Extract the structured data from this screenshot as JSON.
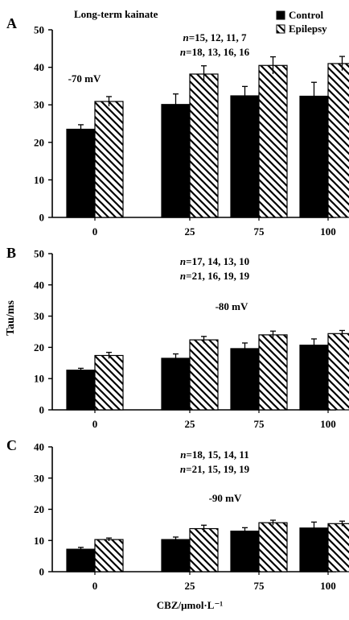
{
  "figure": {
    "ylabel_shared": "Tau/ms",
    "xlabel_shared": "CBZ/μmol·L⁻¹",
    "title": "Long-term kainate"
  },
  "chart_data": [
    {
      "type": "bar",
      "panel": "A",
      "title": "Long-term kainate",
      "annotation_n": [
        "n=15, 12, 11, 7",
        "n=18, 13, 16, 16"
      ],
      "annotation_voltage": "-70 mV",
      "categories": [
        "0",
        "25",
        "75",
        "100"
      ],
      "series": [
        {
          "name": "Control",
          "values": [
            23.5,
            30.1,
            32.4,
            32.3
          ],
          "errors": [
            1.2,
            2.8,
            2.5,
            3.7
          ],
          "color": "#000000",
          "pattern": "solid"
        },
        {
          "name": "Epilepsy",
          "values": [
            30.9,
            38.2,
            40.5,
            41.0
          ],
          "errors": [
            1.3,
            2.2,
            2.3,
            1.9
          ],
          "color": "#ffffff",
          "pattern": "hatch"
        }
      ],
      "ylim": [
        0,
        50
      ],
      "yticks": [
        "0",
        "10",
        "20",
        "30",
        "40",
        "50"
      ],
      "legend": "top-right",
      "grid": false
    },
    {
      "type": "bar",
      "panel": "B",
      "annotation_n": [
        "n=17, 14, 13, 10",
        "n=21, 16, 19, 19"
      ],
      "annotation_voltage": "-80 mV",
      "categories": [
        "0",
        "25",
        "75",
        "100"
      ],
      "series": [
        {
          "name": "Control",
          "values": [
            12.7,
            16.5,
            19.6,
            20.7
          ],
          "errors": [
            0.6,
            1.4,
            1.8,
            2.0
          ],
          "color": "#000000",
          "pattern": "solid"
        },
        {
          "name": "Epilepsy",
          "values": [
            17.4,
            22.4,
            24.0,
            24.4
          ],
          "errors": [
            1.0,
            1.1,
            1.2,
            1.0
          ],
          "color": "#ffffff",
          "pattern": "hatch"
        }
      ],
      "ylim": [
        0,
        50
      ],
      "yticks": [
        "0",
        "10",
        "20",
        "30",
        "40",
        "50"
      ],
      "grid": false
    },
    {
      "type": "bar",
      "panel": "C",
      "annotation_n": [
        "n=18, 15, 14, 11",
        "n=21, 15, 19, 19"
      ],
      "annotation_voltage": "-90 mV",
      "categories": [
        "0",
        "25",
        "75",
        "100"
      ],
      "series": [
        {
          "name": "Control",
          "values": [
            7.2,
            10.3,
            13.0,
            14.0
          ],
          "errors": [
            0.6,
            0.8,
            1.1,
            1.9
          ],
          "color": "#000000",
          "pattern": "solid"
        },
        {
          "name": "Epilepsy",
          "values": [
            10.3,
            13.8,
            15.7,
            15.4
          ],
          "errors": [
            0.5,
            1.1,
            0.8,
            0.8
          ],
          "color": "#ffffff",
          "pattern": "hatch"
        }
      ],
      "ylim": [
        0,
        40
      ],
      "yticks": [
        "0",
        "10",
        "20",
        "30",
        "40"
      ],
      "grid": false
    }
  ]
}
